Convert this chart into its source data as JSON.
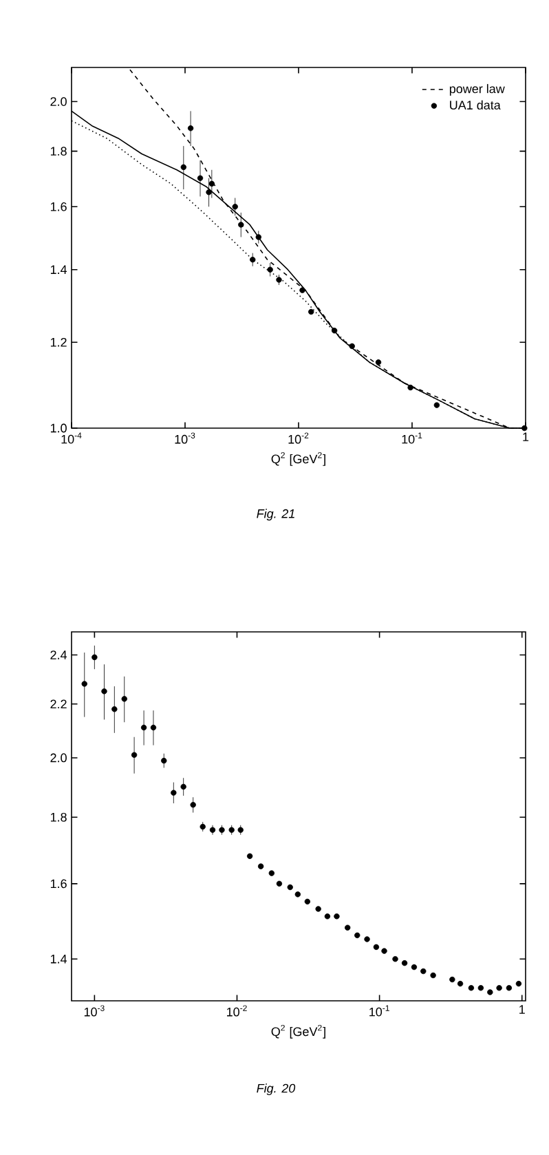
{
  "chart_data": [
    {
      "type": "scatter",
      "xlabel": "Q$^{2}$ [GeV$^{2}$]",
      "annotations": [
        "Fig. 20"
      ],
      "log": "xy",
      "marker": "circle",
      "color": "#000000",
      "xlim": [
        0.00069,
        1.06
      ],
      "ylim": [
        1.3,
        2.5
      ],
      "xticks": [
        {
          "value": 0.001,
          "label": "10$^{-3}$"
        },
        {
          "value": 0.01,
          "label": "10$^{-2}$"
        },
        {
          "value": 0.1,
          "label": "10$^{-1}$"
        },
        1
      ],
      "yticks": [
        {
          "value": 1.4,
          "label": "1.4"
        },
        {
          "value": 1.6,
          "label": "1.6"
        },
        {
          "value": 1.8,
          "label": "1.8"
        },
        {
          "value": 2.0,
          "label": "2.0"
        },
        {
          "value": 2.2,
          "label": "2.2"
        },
        {
          "value": 2.4,
          "label": "2.4"
        }
      ],
      "x": [
        0.001,
        0.00085,
        0.00117,
        0.00162,
        0.00138,
        0.00222,
        0.00259,
        0.0019,
        0.00307,
        0.00421,
        0.00359,
        0.00492,
        0.00575,
        0.00674,
        0.00783,
        0.00917,
        0.0106,
        0.0123,
        0.0147,
        0.0175,
        0.0198,
        0.0236,
        0.0267,
        0.0312,
        0.0372,
        0.0431,
        0.0501,
        0.0597,
        0.0698,
        0.0818,
        0.0949,
        0.108,
        0.129,
        0.15,
        0.175,
        0.203,
        0.238,
        0.324,
        0.369,
        0.44,
        0.514,
        0.597,
        0.692,
        0.811,
        0.948
      ],
      "values": [
        2.39,
        2.28,
        2.25,
        2.22,
        2.18,
        2.11,
        2.11,
        2.01,
        1.99,
        1.9,
        1.88,
        1.84,
        1.77,
        1.76,
        1.76,
        1.76,
        1.76,
        1.68,
        1.65,
        1.63,
        1.6,
        1.59,
        1.57,
        1.55,
        1.53,
        1.51,
        1.51,
        1.48,
        1.46,
        1.45,
        1.43,
        1.42,
        1.4,
        1.39,
        1.38,
        1.37,
        1.36,
        1.35,
        1.34,
        1.33,
        1.33,
        1.32,
        1.33,
        1.33,
        1.34
      ],
      "errors": [
        0.05,
        0.13,
        0.11,
        0.09,
        0.09,
        0.065,
        0.065,
        0.065,
        0.025,
        0.03,
        0.035,
        0.025,
        0.015,
        0.015,
        0.015,
        0.015,
        0.015,
        null,
        null,
        null,
        null,
        null,
        null,
        null,
        null,
        null,
        null,
        null,
        null,
        null,
        null,
        null,
        null,
        null,
        null,
        null,
        null,
        null,
        null,
        null,
        null,
        null,
        null,
        null,
        null
      ]
    },
    {
      "type": "scatter",
      "xlabel": "Q$^{2}$ [GeV$^{2}$]",
      "annotations": [
        "Fig. 21"
      ],
      "log": "xy",
      "legend": "top right",
      "xlim": [
        0.0001,
        1
      ],
      "ylim": [
        1.0,
        2.15
      ],
      "xticks": [
        {
          "value": 0.0001,
          "label": "10$^{-4}$"
        },
        {
          "value": 0.001,
          "label": "10$^{-3}$"
        },
        {
          "value": 0.01,
          "label": "10$^{-2}$"
        },
        {
          "value": 0.1,
          "label": "10$^{-1}$"
        },
        1
      ],
      "yticks": [
        {
          "value": 1.0,
          "label": "1.0"
        },
        {
          "value": 1.2,
          "label": "1.2"
        },
        {
          "value": 1.4,
          "label": "1.4"
        },
        {
          "value": 1.6,
          "label": "1.6"
        },
        {
          "value": 1.8,
          "label": "1.8"
        },
        {
          "value": 2.0,
          "label": "2.0"
        }
      ],
      "series": [
        {
          "name": "power law",
          "type": "line",
          "line_style": "dashed",
          "color": "#000000",
          "x": [
            0.000327,
            0.000526,
            0.000845,
            0.0012,
            0.00153,
            0.00218,
            0.0035,
            0.00531,
            0.0115,
            0.0233,
            0.0859,
            0.726,
            1.0
          ],
          "values": [
            2.14,
            2.01,
            1.9,
            1.81,
            1.73,
            1.62,
            1.52,
            1.43,
            1.34,
            1.21,
            1.1,
            1.0,
            1.0
          ]
        },
        {
          "name": "UA1 data",
          "type": "scatter",
          "marker": "circle",
          "color": "#000000",
          "x": [
            0.00112,
            0.00097,
            0.00136,
            0.00172,
            0.00162,
            0.00276,
            0.00311,
            0.00444,
            0.00394,
            0.00562,
            0.00672,
            0.0108,
            0.0129,
            0.0207,
            0.0296,
            0.0505,
            0.0968,
            0.165,
            0.977
          ],
          "values": [
            1.89,
            1.74,
            1.7,
            1.68,
            1.65,
            1.6,
            1.54,
            1.5,
            1.43,
            1.4,
            1.37,
            1.34,
            1.28,
            1.23,
            1.19,
            1.15,
            1.09,
            1.05,
            1.0
          ],
          "errors": [
            0.07,
            0.08,
            0.065,
            0.05,
            0.05,
            0.03,
            0.04,
            0.02,
            0.02,
            0.02,
            0.015,
            null,
            null,
            null,
            null,
            null,
            null,
            null,
            null
          ]
        },
        {
          "type": "line",
          "line_style": "solid",
          "color": "#000000",
          "x": [
            0.0001,
            0.000151,
            0.000258,
            0.000415,
            0.000845,
            0.00153,
            0.00245,
            0.00372,
            0.00531,
            0.00804,
            0.0115,
            0.0154,
            0.0233,
            0.0422,
            0.0859,
            0.175,
            0.356,
            0.726,
            1.0
          ],
          "values": [
            1.96,
            1.9,
            1.85,
            1.79,
            1.73,
            1.67,
            1.6,
            1.54,
            1.46,
            1.4,
            1.34,
            1.28,
            1.21,
            1.15,
            1.1,
            1.06,
            1.02,
            1.0,
            1.0
          ]
        },
        {
          "type": "line",
          "line_style": "dotted",
          "color": "#000000",
          "x": [
            0.0001,
            0.000204,
            0.000415,
            0.00075,
            0.00136,
            0.00245,
            0.00394,
            0.00713,
            0.0115,
            0.0173,
            0.0263,
            0.0422,
            0.0859,
            0.175,
            0.356,
            0.726,
            1.0
          ],
          "values": [
            1.92,
            1.85,
            1.75,
            1.68,
            1.59,
            1.5,
            1.43,
            1.37,
            1.31,
            1.25,
            1.2,
            1.15,
            1.1,
            1.06,
            1.02,
            1.0,
            1.0
          ]
        }
      ]
    }
  ]
}
